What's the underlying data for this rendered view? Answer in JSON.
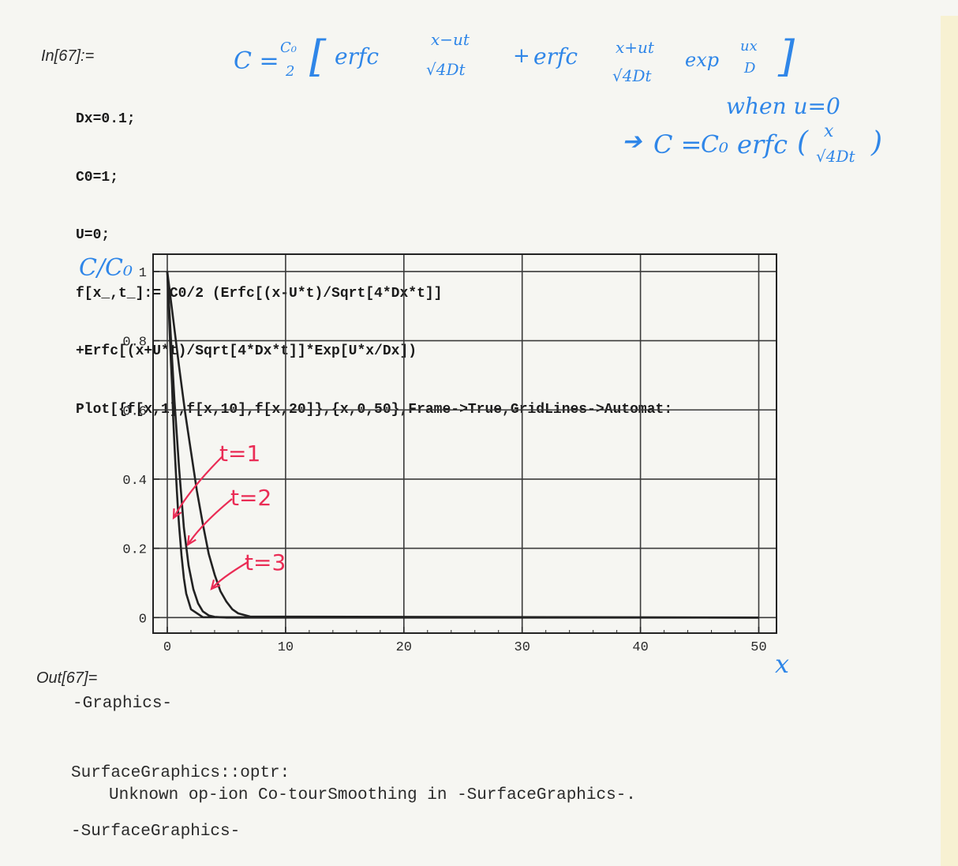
{
  "notebook": {
    "in_label": "In[67]:=",
    "code_lines": [
      "Dx=0.1;",
      "C0=1;",
      "U=0;",
      "f[x_,t_]:= C0/2 (Erfc[(x-U*t)/Sqrt[4*Dx*t]]",
      "+Erfc[(x+U*t)/Sqrt[4*Dx*t]]*Exp[U*x/Dx])",
      "Plot[{f[x,1],f[x,10],f[x,20]},{x,0,50},Frame->True,GridLines->Automat:"
    ],
    "out_label": "Out[67]=",
    "output_graphics": "-Graphics-",
    "message_header": "SurfaceGraphics::optr:",
    "message_body": "Unknown op-ion Co-tourSmoothing in -SurfaceGraphics-.",
    "output_surface": "-SurfaceGraphics-"
  },
  "annotations": {
    "formula_general": {
      "lhs": "C =",
      "coef_num": "C₀",
      "coef_den": "2",
      "term1_fn": "erfc",
      "term1_num": "x−ut",
      "term1_den": "√4Dt",
      "plus": "+",
      "term2_fn": "erfc",
      "term2_num": "x+ut",
      "term2_den": "√4Dt",
      "exp_fn": "exp",
      "exp_num": "ux",
      "exp_den": "D"
    },
    "when_u0": "when  u=0",
    "formula_u0": {
      "lhs": "C =",
      "coef": "C₀",
      "fn": "erfc",
      "num": "x",
      "den": "√4Dt"
    },
    "y_axis_note": "C/C₀",
    "x_axis_note": "x",
    "curve_labels": [
      "t=1",
      "t=2",
      "t=3"
    ],
    "colors": {
      "blue_ink": "#2f86e8",
      "red_ink": "#ea2c55",
      "plot_ink": "#222222"
    }
  },
  "chart_data": {
    "type": "line",
    "title": "",
    "xlabel": "",
    "ylabel": "",
    "xlim": [
      -1.2,
      51.5
    ],
    "ylim": [
      -0.045,
      1.05
    ],
    "x_ticks": [
      0,
      10,
      20,
      30,
      40,
      50
    ],
    "x_tick_labels": [
      "0",
      "10",
      "20",
      "30",
      "40",
      "50"
    ],
    "y_ticks": [
      0,
      0.2,
      0.4,
      0.6,
      0.8,
      1
    ],
    "y_tick_labels": [
      "0",
      "0.2",
      "0.4",
      "0.6",
      "0.8",
      "1"
    ],
    "grid": true,
    "frame": true,
    "series": [
      {
        "label_ref": "t=1",
        "x": [
          0,
          0.1,
          0.2,
          0.3,
          0.4,
          0.5,
          0.6,
          0.7,
          0.8,
          0.9,
          1.0,
          1.2,
          1.4,
          1.6,
          2.0,
          3.0,
          50
        ],
        "y": [
          1.0,
          0.912,
          0.827,
          0.744,
          0.673,
          0.576,
          0.502,
          0.435,
          0.371,
          0.313,
          0.264,
          0.18,
          0.114,
          0.069,
          0.024,
          0.001,
          0.0
        ]
      },
      {
        "label_ref": "t=2",
        "x": [
          0,
          0.3,
          0.6,
          1.0,
          1.4,
          1.8,
          2.2,
          2.6,
          3.0,
          3.5,
          4.0,
          5.0,
          50
        ],
        "y": [
          1.0,
          0.81,
          0.63,
          0.43,
          0.26,
          0.15,
          0.082,
          0.041,
          0.018,
          0.006,
          0.002,
          0.0,
          0.0
        ]
      },
      {
        "label_ref": "t=3",
        "x": [
          0,
          0.5,
          1.0,
          1.5,
          2.0,
          2.5,
          3.0,
          3.5,
          4.0,
          4.5,
          5.0,
          5.5,
          6.0,
          7.0,
          50
        ],
        "y": [
          1.0,
          0.862,
          0.724,
          0.594,
          0.48,
          0.366,
          0.271,
          0.184,
          0.124,
          0.076,
          0.046,
          0.024,
          0.012,
          0.003,
          0.0
        ]
      }
    ]
  }
}
